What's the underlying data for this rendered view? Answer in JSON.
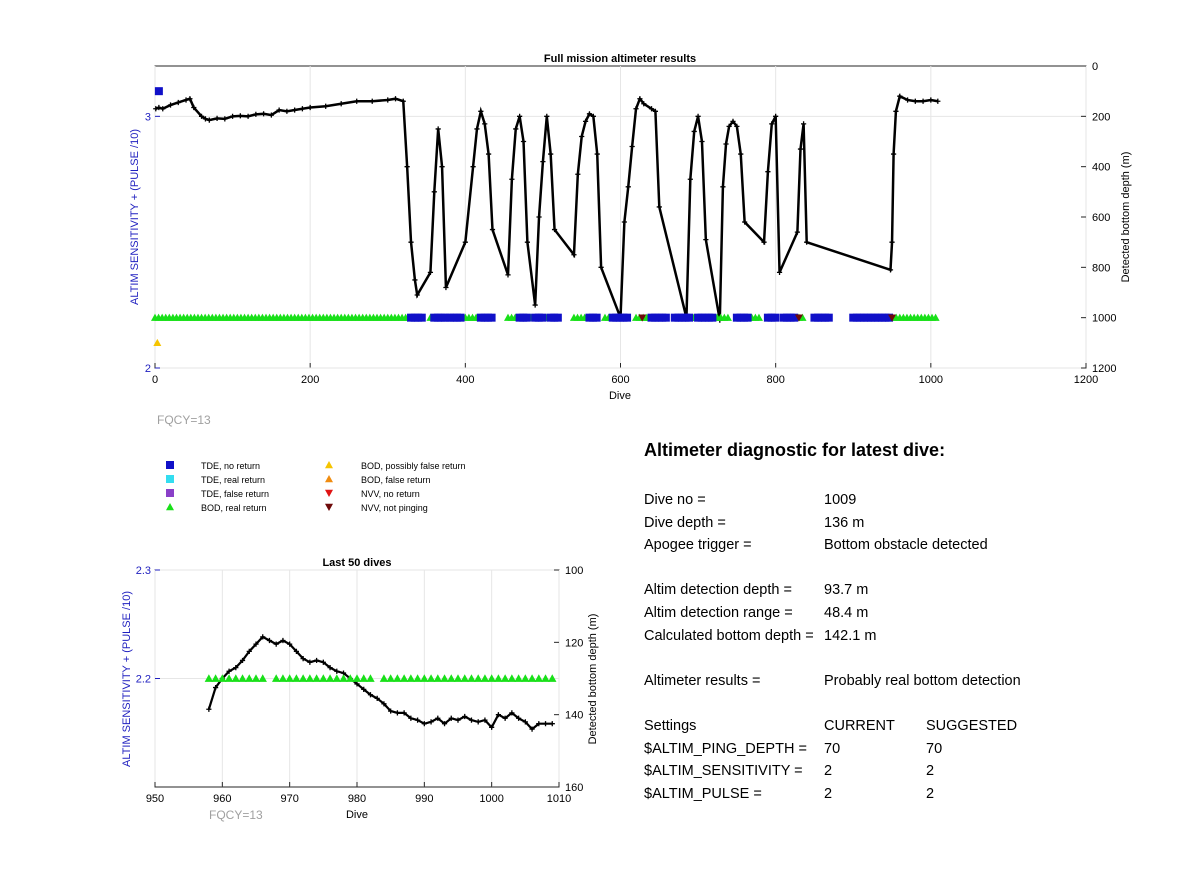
{
  "top_chart": {
    "title": "Full mission altimeter results",
    "xlabel": "Dive",
    "ylabel_left": "ALTIM SENSITIVITY + (PULSE /10)",
    "ylabel_right": "Detected bottom depth (m)",
    "x_ticks": [
      "0",
      "200",
      "400",
      "600",
      "800",
      "1000",
      "1200"
    ],
    "yl_ticks": [
      "2",
      "3"
    ],
    "yr_ticks": [
      "0",
      "200",
      "400",
      "600",
      "800",
      "1000",
      "1200"
    ],
    "fqcy": "FQCY=13"
  },
  "bottom_chart": {
    "title": "Last 50 dives",
    "xlabel": "Dive",
    "ylabel_left": "ALTIM SENSITIVITY + (PULSE /10)",
    "ylabel_right": "Detected bottom depth (m)",
    "x_ticks": [
      "950",
      "960",
      "970",
      "980",
      "990",
      "1000",
      "1010"
    ],
    "yl_ticks": [
      "2.3",
      "2.2"
    ],
    "yr_ticks": [
      "100",
      "120",
      "140",
      "160"
    ],
    "fqcy": "FQCY=13"
  },
  "legend": [
    {
      "label": "TDE, no return",
      "shape": "square",
      "color": "#1010c8"
    },
    {
      "label": "TDE, real return",
      "shape": "square",
      "color": "#33ddf0"
    },
    {
      "label": "TDE, false return",
      "shape": "square",
      "color": "#8a3fc8"
    },
    {
      "label": "BOD, real return",
      "shape": "triangle-up",
      "color": "#19e019"
    },
    {
      "label": "BOD, possibly false return",
      "shape": "triangle-up",
      "color": "#f5c400"
    },
    {
      "label": "BOD, false return",
      "shape": "triangle-up",
      "color": "#f08c10"
    },
    {
      "label": "NVV, no return",
      "shape": "triangle-down",
      "color": "#e01414"
    },
    {
      "label": "NVV, not pinging",
      "shape": "triangle-down",
      "color": "#6e0a0a"
    }
  ],
  "diagnostic": {
    "title": "Altimeter diagnostic for latest dive:",
    "dive_no_label": "Dive no =",
    "dive_no": "1009",
    "dive_depth_label": "Dive depth =",
    "dive_depth": "136 m",
    "apogee_label": "Apogee trigger =",
    "apogee": "Bottom obstacle detected",
    "det_depth_label": "Altim detection depth =",
    "det_depth": "93.7 m",
    "det_range_label": "Altim detection range =",
    "det_range": "48.4 m",
    "calc_depth_label": "Calculated bottom depth =",
    "calc_depth": "142.1 m",
    "results_label": "Altimeter results =",
    "results": "Probably real bottom detection",
    "settings_label": "Settings",
    "current_label": "CURRENT",
    "suggested_label": "SUGGESTED",
    "settings": [
      {
        "name": "$ALTIM_PING_DEPTH =",
        "current": "70",
        "suggested": "70"
      },
      {
        "name": "$ALTIM_SENSITIVITY =",
        "current": "2",
        "suggested": "2"
      },
      {
        "name": "$ALTIM_PULSE =",
        "current": "2",
        "suggested": "2"
      }
    ]
  },
  "chart_data": [
    {
      "type": "scatter",
      "title": "Full mission altimeter results",
      "xlabel": "Dive",
      "ylabel": "ALTIM SENSITIVITY + (PULSE /10)",
      "y2label": "Detected bottom depth (m)",
      "xlim": [
        0,
        1200
      ],
      "ylim": [
        2,
        3.2
      ],
      "y2lim": [
        1200,
        0
      ],
      "series": [
        {
          "name": "Detected bottom depth (m)",
          "axis": "right",
          "style": "line",
          "x": [
            1,
            5,
            10,
            20,
            30,
            40,
            45,
            50,
            60,
            65,
            70,
            80,
            90,
            100,
            110,
            120,
            130,
            140,
            150,
            160,
            170,
            180,
            190,
            200,
            220,
            240,
            260,
            280,
            300,
            310,
            320,
            325,
            330,
            335,
            338,
            355,
            360,
            365,
            370,
            375,
            400,
            410,
            415,
            420,
            425,
            430,
            435,
            455,
            460,
            465,
            470,
            475,
            480,
            490,
            495,
            500,
            505,
            510,
            515,
            540,
            545,
            550,
            555,
            560,
            565,
            570,
            575,
            600,
            605,
            610,
            615,
            620,
            625,
            630,
            640,
            645,
            650,
            685,
            690,
            695,
            700,
            705,
            710,
            728,
            732,
            736,
            740,
            745,
            750,
            755,
            760,
            785,
            790,
            795,
            800,
            805,
            828,
            832,
            836,
            840,
            948,
            950,
            952,
            955,
            960,
            970,
            980,
            990,
            1000,
            1009
          ],
          "y": [
            170,
            165,
            170,
            155,
            145,
            135,
            130,
            165,
            200,
            210,
            215,
            208,
            210,
            200,
            198,
            200,
            192,
            190,
            195,
            175,
            180,
            175,
            170,
            165,
            160,
            150,
            140,
            140,
            135,
            130,
            140,
            400,
            700,
            850,
            910,
            820,
            500,
            250,
            400,
            880,
            700,
            400,
            250,
            180,
            230,
            350,
            650,
            830,
            450,
            250,
            200,
            300,
            700,
            950,
            600,
            380,
            200,
            350,
            650,
            750,
            430,
            280,
            220,
            190,
            200,
            350,
            800,
            1000,
            620,
            480,
            320,
            170,
            130,
            150,
            170,
            180,
            560,
            1000,
            450,
            260,
            200,
            300,
            690,
            1010,
            480,
            310,
            240,
            220,
            240,
            350,
            620,
            700,
            420,
            230,
            200,
            820,
            660,
            330,
            230,
            700,
            810,
            700,
            350,
            180,
            120,
            135,
            140,
            140,
            135,
            140
          ]
        },
        {
          "name": "BOD, real return",
          "axis": "left",
          "style": "markers",
          "x_ranges": [
            [
              0,
              330
            ],
            [
              355,
              370
            ],
            [
              400,
              420
            ],
            [
              455,
              470
            ],
            [
              480,
              485
            ],
            [
              495,
              505
            ],
            [
              540,
              560
            ],
            [
              580,
              595
            ],
            [
              620,
              640
            ],
            [
              690,
              700
            ],
            [
              720,
              740
            ],
            [
              760,
              780
            ],
            [
              830,
              835
            ],
            [
              900,
              1010
            ]
          ],
          "y": 2.2
        },
        {
          "name": "TDE, no return",
          "axis": "left",
          "style": "markers",
          "x_ranges": [
            [
              330,
              345
            ],
            [
              360,
              375
            ],
            [
              380,
              395
            ],
            [
              420,
              435
            ],
            [
              470,
              480
            ],
            [
              490,
              500
            ],
            [
              510,
              520
            ],
            [
              560,
              570
            ],
            [
              590,
              610
            ],
            [
              640,
              660
            ],
            [
              670,
              690
            ],
            [
              700,
              720
            ],
            [
              750,
              765
            ],
            [
              790,
              800
            ],
            [
              810,
              825
            ],
            [
              850,
              870
            ],
            [
              900,
              950
            ]
          ],
          "y": 2.2
        },
        {
          "name": "TDE, no return",
          "axis": "left",
          "style": "markers",
          "x": [
            5
          ],
          "y": [
            3.1
          ]
        },
        {
          "name": "BOD, possibly false return",
          "axis": "left",
          "style": "markers",
          "x": [
            3
          ],
          "y": [
            2.1
          ]
        },
        {
          "name": "NVV, not pinging",
          "axis": "left",
          "style": "markers",
          "x": [
            628,
            830,
            950
          ],
          "y": [
            2.2,
            2.2,
            2.2
          ]
        }
      ]
    },
    {
      "type": "scatter",
      "title": "Last 50 dives",
      "xlabel": "Dive",
      "ylabel": "ALTIM SENSITIVITY + (PULSE /10)",
      "y2label": "Detected bottom depth (m)",
      "xlim": [
        950,
        1010
      ],
      "ylim": [
        2.1,
        2.3
      ],
      "y2lim": [
        160,
        100
      ],
      "series": [
        {
          "name": "Detected bottom depth (m)",
          "axis": "right",
          "style": "line",
          "x": [
            958,
            959,
            960,
            961,
            962,
            963,
            964,
            965,
            966,
            967,
            968,
            969,
            970,
            971,
            972,
            973,
            974,
            975,
            976,
            977,
            978,
            979,
            980,
            981,
            982,
            983,
            984,
            985,
            986,
            987,
            988,
            989,
            990,
            991,
            992,
            993,
            994,
            995,
            996,
            997,
            998,
            999,
            1000,
            1001,
            1002,
            1003,
            1004,
            1005,
            1006,
            1007,
            1008,
            1009
          ],
          "y": [
            138.5,
            132.5,
            130,
            128,
            127,
            125,
            122.5,
            120.5,
            118.5,
            119.5,
            120.5,
            119.5,
            120.5,
            122.5,
            124.5,
            125.5,
            125,
            125.5,
            127,
            128,
            128.5,
            130,
            131.5,
            133,
            134.5,
            135.5,
            137,
            139,
            139.5,
            139.5,
            141,
            141.5,
            142.5,
            142,
            141,
            142.5,
            141,
            141.5,
            140.5,
            141.5,
            142,
            141.5,
            143.5,
            140,
            141,
            139.5,
            141,
            142,
            144,
            142.5,
            142.5,
            142.5
          ]
        },
        {
          "name": "BOD, real return",
          "axis": "left",
          "style": "markers",
          "x": [
            958,
            959,
            960,
            961,
            962,
            963,
            964,
            965,
            966,
            967,
            968,
            969,
            970,
            971,
            972,
            973,
            974,
            975,
            976,
            977,
            978,
            979,
            980,
            981,
            982,
            983,
            984,
            985,
            986,
            987,
            988,
            989,
            990,
            991,
            992,
            993,
            994,
            995,
            996,
            997,
            998,
            999,
            1000,
            1001,
            1002,
            1003,
            1004,
            1005,
            1006,
            1007,
            1008,
            1009
          ],
          "y": [
            2.2,
            2.2,
            2.2,
            2.2,
            2.2,
            2.2,
            2.2,
            2.2,
            2.2,
            null,
            2.2,
            2.2,
            2.2,
            2.2,
            2.2,
            2.2,
            2.2,
            2.2,
            2.2,
            2.2,
            2.2,
            2.2,
            2.2,
            2.2,
            2.2,
            null,
            2.2,
            2.2,
            2.2,
            2.2,
            2.2,
            2.2,
            2.2,
            2.2,
            2.2,
            2.2,
            2.2,
            2.2,
            2.2,
            2.2,
            2.2,
            2.2,
            2.2,
            2.2,
            2.2,
            2.2,
            2.2,
            2.2,
            2.2,
            2.2,
            2.2,
            2.2
          ]
        }
      ]
    }
  ]
}
